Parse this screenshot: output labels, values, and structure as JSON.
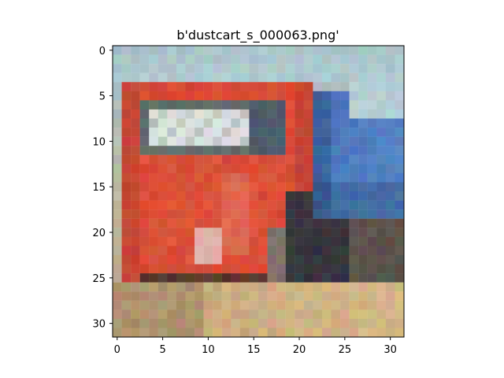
{
  "figure": {
    "title": "b'dustcart_s_000063.png'",
    "image_description_name": "pixelated-red-blue-truck-image",
    "axes": {
      "x_ticks": [
        "0",
        "5",
        "10",
        "15",
        "20",
        "25",
        "30"
      ],
      "y_ticks": [
        "0",
        "5",
        "10",
        "15",
        "20",
        "25",
        "30"
      ],
      "x_range": [
        -0.5,
        31.5
      ],
      "y_range": [
        -0.5,
        31.5
      ],
      "y_inverted": true
    },
    "colors": {
      "sky": "#a9c4c9",
      "cab_red": "#d94b35",
      "cab_dark_red": "#9f3b33",
      "windshield": "#e6ece8",
      "window_frame": "#5f6c6c",
      "truck_blue": "#3f6fb4",
      "dark_blue": "#253f68",
      "shadow": "#3d332d",
      "ground": "#c6a77a",
      "sand": "#d8bc8d",
      "axis": "#000000"
    }
  }
}
